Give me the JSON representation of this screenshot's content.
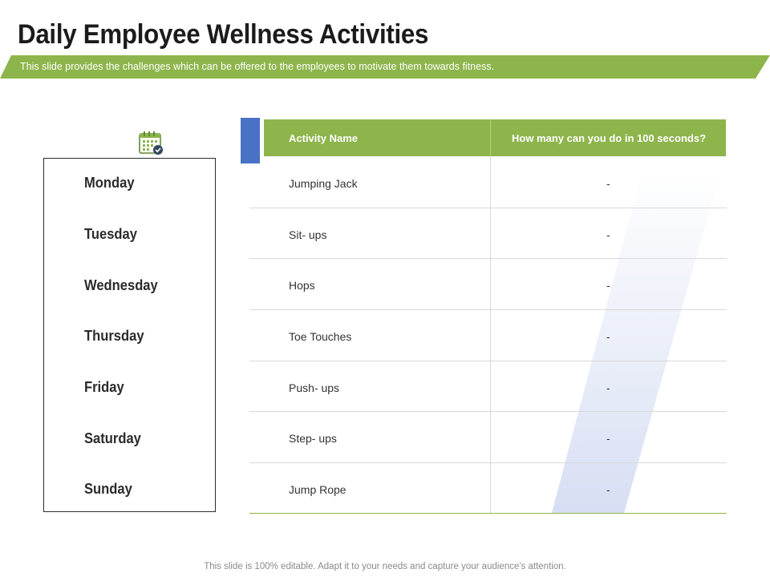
{
  "slide": {
    "title": "Daily Employee Wellness Activities",
    "subtitle": "This slide provides the challenges which can be offered to the employees to motivate them towards fitness.",
    "footer": "This slide is 100% editable. Adapt it to your needs and capture your audience's attention."
  },
  "days": [
    "Monday",
    "Tuesday",
    "Wednesday",
    "Thursday",
    "Friday",
    "Saturday",
    "Sunday"
  ],
  "table": {
    "headers": [
      "Activity Name",
      "How many can you do in 100 seconds?"
    ],
    "rows": [
      {
        "activity": "Jumping Jack",
        "count": "-"
      },
      {
        "activity": "Sit- ups",
        "count": "-"
      },
      {
        "activity": "Hops",
        "count": "-"
      },
      {
        "activity": "Toe Touches",
        "count": "-"
      },
      {
        "activity": "Push- ups",
        "count": "-"
      },
      {
        "activity": "Step- ups",
        "count": "-"
      },
      {
        "activity": "Jump Rope",
        "count": "-"
      }
    ]
  },
  "icons": {
    "calendar": "calendar-check-icon"
  },
  "colors": {
    "accent_green": "#8db54b",
    "accent_blue": "#4a72c4",
    "title_text": "#1b1b1b"
  }
}
